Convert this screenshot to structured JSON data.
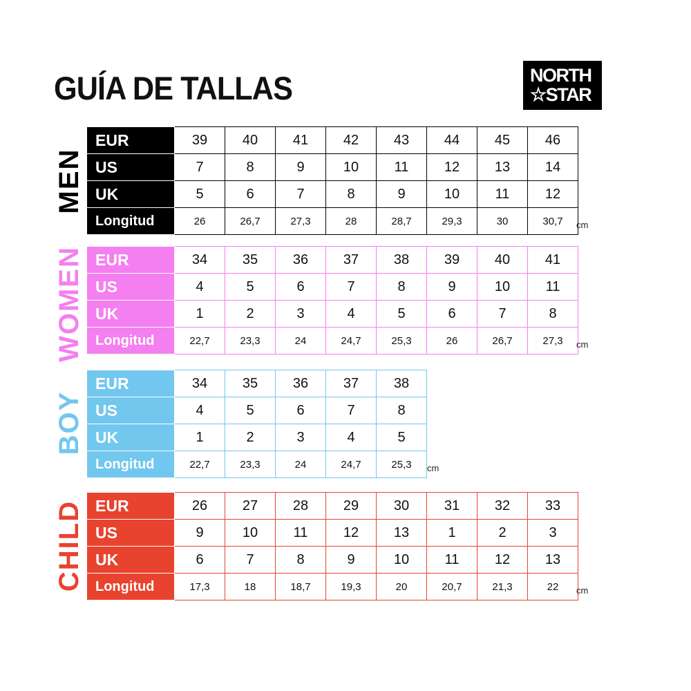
{
  "title": "GUÍA DE TALLAS",
  "logo": {
    "line1": "NORTH",
    "line2": "☆STAR"
  },
  "row_labels": [
    "EUR",
    "US",
    "UK",
    "Longitud"
  ],
  "unit": "cm",
  "sections": [
    {
      "name": "MEN",
      "color": "#000000",
      "label_color": "#000000",
      "rows": [
        [
          "39",
          "40",
          "41",
          "42",
          "43",
          "44",
          "45",
          "46"
        ],
        [
          "7",
          "8",
          "9",
          "10",
          "11",
          "12",
          "13",
          "14"
        ],
        [
          "5",
          "6",
          "7",
          "8",
          "9",
          "10",
          "11",
          "12"
        ],
        [
          "26",
          "26,7",
          "27,3",
          "28",
          "28,7",
          "29,3",
          "30",
          "30,7"
        ]
      ]
    },
    {
      "name": "WOMEN",
      "color": "#f47ff0",
      "label_color": "#f47ff0",
      "rows": [
        [
          "34",
          "35",
          "36",
          "37",
          "38",
          "39",
          "40",
          "41"
        ],
        [
          "4",
          "5",
          "6",
          "7",
          "8",
          "9",
          "10",
          "11"
        ],
        [
          "1",
          "2",
          "3",
          "4",
          "5",
          "6",
          "7",
          "8"
        ],
        [
          "22,7",
          "23,3",
          "24",
          "24,7",
          "25,3",
          "26",
          "26,7",
          "27,3"
        ]
      ]
    },
    {
      "name": "BOY",
      "color": "#72c7ee",
      "label_color": "#72c7ee",
      "rows": [
        [
          "34",
          "35",
          "36",
          "37",
          "38"
        ],
        [
          "4",
          "5",
          "6",
          "7",
          "8"
        ],
        [
          "1",
          "2",
          "3",
          "4",
          "5"
        ],
        [
          "22,7",
          "23,3",
          "24",
          "24,7",
          "25,3"
        ]
      ]
    },
    {
      "name": "CHILD",
      "color": "#e8432f",
      "label_color": "#e8432f",
      "rows": [
        [
          "26",
          "27",
          "28",
          "29",
          "30",
          "31",
          "32",
          "33"
        ],
        [
          "9",
          "10",
          "11",
          "12",
          "13",
          "1",
          "2",
          "3"
        ],
        [
          "6",
          "7",
          "8",
          "9",
          "10",
          "11",
          "12",
          "13"
        ],
        [
          "17,3",
          "18",
          "18,7",
          "19,3",
          "20",
          "20,7",
          "21,3",
          "22"
        ]
      ]
    }
  ]
}
